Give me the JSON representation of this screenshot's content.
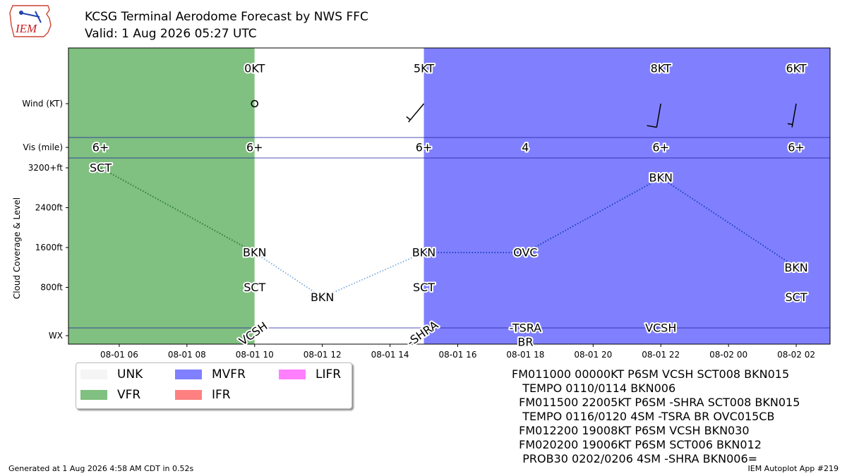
{
  "header": {
    "logo_text": "IEM",
    "title": "KCSG Terminal Aerodome Forecast by NWS FFC",
    "subtitle": "Valid: 1 Aug 2026 05:27 UTC"
  },
  "chart_data": {
    "type": "timeline",
    "x_range": [
      "2026-08-01 04:30",
      "2026-08-02 03:00"
    ],
    "x_tick_labels": [
      "08-01 06",
      "08-01 08",
      "08-01 10",
      "08-01 12",
      "08-01 14",
      "08-01 16",
      "08-01 18",
      "08-01 20",
      "08-01 22",
      "08-02 00",
      "08-02 02"
    ],
    "y_tick_labels": [
      "Wind (KT)",
      "Vis (mile)",
      "3200+ft",
      "2400ft",
      "1600ft",
      "800ft",
      "WX"
    ],
    "ylabel": "Cloud Coverage & Level",
    "flight_category_periods": [
      {
        "start": "2026-08-01 04:30",
        "end": "2026-08-01 10:00",
        "category": "VFR",
        "color": "#80c080"
      },
      {
        "start": "2026-08-01 10:00",
        "end": "2026-08-01 15:00",
        "category": "UNK",
        "color": "#ffffff"
      },
      {
        "start": "2026-08-01 15:00",
        "end": "2026-08-02 03:00",
        "category": "MVFR",
        "color": "#8080ff"
      }
    ],
    "wind": [
      {
        "time": "2026-08-01 10:00",
        "label": "0KT",
        "speed": 0,
        "direction": 0
      },
      {
        "time": "2026-08-01 15:00",
        "label": "5KT",
        "speed": 5,
        "direction": 220
      },
      {
        "time": "2026-08-01 22:00",
        "label": "8KT",
        "speed": 8,
        "direction": 190
      },
      {
        "time": "2026-08-02 02:00",
        "label": "6KT",
        "speed": 6,
        "direction": 190
      }
    ],
    "visibility": [
      {
        "time": "2026-08-01 05:27",
        "label": "6+"
      },
      {
        "time": "2026-08-01 10:00",
        "label": "6+"
      },
      {
        "time": "2026-08-01 15:00",
        "label": "6+"
      },
      {
        "time": "2026-08-01 18:00",
        "label": "4"
      },
      {
        "time": "2026-08-01 22:00",
        "label": "6+"
      },
      {
        "time": "2026-08-02 02:00",
        "label": "6+"
      }
    ],
    "clouds": [
      {
        "time": "2026-08-01 05:27",
        "level_ft": 3200,
        "cover": "SCT"
      },
      {
        "time": "2026-08-01 10:00",
        "level_ft": 1500,
        "cover": "BKN"
      },
      {
        "time": "2026-08-01 10:00",
        "level_ft": 800,
        "cover": "SCT"
      },
      {
        "time": "2026-08-01 12:00",
        "level_ft": 600,
        "cover": "BKN"
      },
      {
        "time": "2026-08-01 15:00",
        "level_ft": 1500,
        "cover": "BKN"
      },
      {
        "time": "2026-08-01 15:00",
        "level_ft": 800,
        "cover": "SCT"
      },
      {
        "time": "2026-08-01 18:00",
        "level_ft": 1500,
        "cover": "OVC"
      },
      {
        "time": "2026-08-01 22:00",
        "level_ft": 3000,
        "cover": "BKN"
      },
      {
        "time": "2026-08-02 02:00",
        "level_ft": 1200,
        "cover": "BKN"
      },
      {
        "time": "2026-08-02 02:00",
        "level_ft": 600,
        "cover": "SCT"
      }
    ],
    "cloud_lines": [
      {
        "color": "#2e7d32",
        "points": [
          [
            "2026-08-01 05:27",
            3200
          ],
          [
            "2026-08-01 10:00",
            1500
          ]
        ]
      },
      {
        "color": "#7fb0e0",
        "points": [
          [
            "2026-08-01 10:00",
            1500
          ],
          [
            "2026-08-01 12:00",
            600
          ],
          [
            "2026-08-01 15:00",
            1500
          ]
        ]
      },
      {
        "color": "#1a3fbf",
        "points": [
          [
            "2026-08-01 15:00",
            1500
          ],
          [
            "2026-08-01 18:00",
            1500
          ],
          [
            "2026-08-01 22:00",
            3000
          ],
          [
            "2026-08-02 02:00",
            1200
          ]
        ]
      }
    ],
    "weather": [
      {
        "time": "2026-08-01 10:00",
        "label": "VCSH",
        "rotated": true
      },
      {
        "time": "2026-08-01 15:00",
        "label": "-SHRA",
        "rotated": true
      },
      {
        "time": "2026-08-01 18:00",
        "label": "-TSRA",
        "rotated": false,
        "line": 0
      },
      {
        "time": "2026-08-01 18:00",
        "label": "BR",
        "rotated": false,
        "line": 1
      },
      {
        "time": "2026-08-01 22:00",
        "label": "VCSH",
        "rotated": false,
        "line": 0
      }
    ]
  },
  "legend": {
    "items": [
      {
        "label": "UNK",
        "color": "#f5f5f5"
      },
      {
        "label": "VFR",
        "color": "#80c080"
      },
      {
        "label": "MVFR",
        "color": "#8080ff"
      },
      {
        "label": "IFR",
        "color": "#ff8080"
      },
      {
        "label": "LIFR",
        "color": "#ff80ff"
      }
    ]
  },
  "taf_text": [
    "FM011000 00000KT P6SM VCSH SCT008 BKN015",
    "   TEMPO 0110/0114 BKN006",
    "  FM011500 22005KT P6SM -SHRA SCT008 BKN015",
    "   TEMPO 0116/0120 4SM -TSRA BR OVC015CB",
    "  FM012200 19008KT P6SM VCSH BKN030",
    "  FM020200 19006KT P6SM SCT006 BKN012",
    "   PROB30 0202/0206 4SM -SHRA BKN006="
  ],
  "footer": {
    "generated": "Generated at 1 Aug 2026 4:58 AM CDT in 0.52s",
    "app": "IEM Autoplot App #219"
  }
}
